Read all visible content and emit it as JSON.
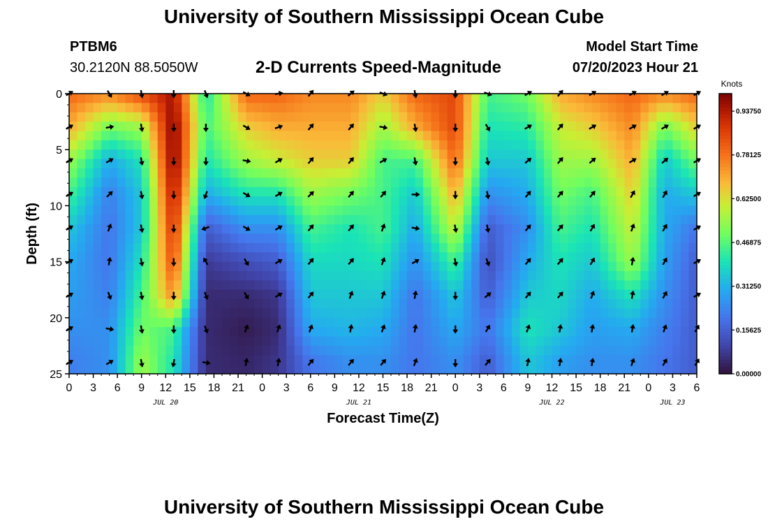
{
  "header": {
    "title": "University of Southern Mississippi Ocean Cube",
    "station_id": "PTBM6",
    "station_coords": "30.2120N  88.5050W",
    "subtitle": "2-D Currents Speed-Magnitude",
    "model_start_label": "Model Start Time",
    "model_start_value": "07/20/2023 Hour 21"
  },
  "footer": {
    "title": "University of Southern Mississippi Ocean Cube"
  },
  "chart_data": {
    "type": "heatmap",
    "title": "2-D Currents Speed-Magnitude",
    "xlabel": "Forecast Time(Z)",
    "ylabel": "Depth (ft)",
    "colorbar_label": "Knots",
    "colorbar_ticks": [
      "0.00000",
      "0.15625",
      "0.31250",
      "0.46875",
      "0.62500",
      "0.78125",
      "0.93750"
    ],
    "colorbar_range": [
      0.0,
      1.0
    ],
    "x_range_hours": [
      0,
      78
    ],
    "x_ticks": [
      "0",
      "3",
      "6",
      "9",
      "12",
      "15",
      "18",
      "21",
      "0",
      "3",
      "6",
      "9",
      "12",
      "15",
      "18",
      "21",
      "0",
      "3",
      "6",
      "9",
      "12",
      "15",
      "18",
      "21",
      "0",
      "3",
      "6"
    ],
    "date_labels": [
      "JUL 20",
      "JUL 21",
      "JUL 22",
      "JUL 23"
    ],
    "date_label_hours": [
      12,
      36,
      60,
      75
    ],
    "y_range_ft": [
      0,
      25
    ],
    "y_ticks": [
      0,
      5,
      10,
      15,
      20,
      25
    ],
    "arrow_times": [
      0,
      5,
      9,
      13,
      17,
      22,
      26,
      30,
      35,
      39,
      43,
      48,
      52,
      57,
      61,
      65,
      70,
      74,
      78
    ],
    "arrow_depths": [
      0,
      3,
      6,
      9,
      12,
      15,
      18,
      21,
      24
    ],
    "speed_knots_by_time": [
      {
        "hour": 0,
        "speeds": [
          0.8,
          0.7,
          0.55,
          0.45,
          0.35,
          0.3,
          0.28,
          0.25,
          0.22
        ]
      },
      {
        "hour": 5,
        "speeds": [
          0.75,
          0.5,
          0.3,
          0.22,
          0.2,
          0.2,
          0.22,
          0.25,
          0.25
        ]
      },
      {
        "hour": 9,
        "speeds": [
          0.85,
          0.55,
          0.4,
          0.35,
          0.35,
          0.4,
          0.45,
          0.5,
          0.55
        ]
      },
      {
        "hour": 13,
        "speeds": [
          0.95,
          1.0,
          1.0,
          0.95,
          0.9,
          0.85,
          0.75,
          0.45,
          0.4
        ]
      },
      {
        "hour": 17,
        "speeds": [
          0.4,
          0.45,
          0.4,
          0.3,
          0.15,
          0.08,
          0.05,
          0.05,
          0.05
        ]
      },
      {
        "hour": 22,
        "speeds": [
          0.8,
          0.65,
          0.55,
          0.4,
          0.25,
          0.12,
          0.05,
          0.02,
          0.04
        ]
      },
      {
        "hour": 26,
        "speeds": [
          0.8,
          0.7,
          0.6,
          0.4,
          0.25,
          0.15,
          0.07,
          0.05,
          0.07
        ]
      },
      {
        "hour": 30,
        "speeds": [
          0.75,
          0.7,
          0.65,
          0.55,
          0.45,
          0.38,
          0.35,
          0.3,
          0.2
        ]
      },
      {
        "hour": 35,
        "speeds": [
          0.75,
          0.7,
          0.65,
          0.5,
          0.4,
          0.38,
          0.35,
          0.32,
          0.25
        ]
      },
      {
        "hour": 39,
        "speeds": [
          0.65,
          0.55,
          0.45,
          0.45,
          0.45,
          0.4,
          0.35,
          0.3,
          0.25
        ]
      },
      {
        "hour": 43,
        "speeds": [
          0.8,
          0.7,
          0.45,
          0.35,
          0.3,
          0.25,
          0.2,
          0.2,
          0.2
        ]
      },
      {
        "hour": 48,
        "speeds": [
          0.85,
          0.85,
          0.8,
          0.7,
          0.6,
          0.45,
          0.35,
          0.3,
          0.25
        ]
      },
      {
        "hour": 52,
        "speeds": [
          0.45,
          0.4,
          0.35,
          0.25,
          0.15,
          0.12,
          0.15,
          0.2,
          0.15
        ]
      },
      {
        "hour": 57,
        "speeds": [
          0.5,
          0.42,
          0.35,
          0.3,
          0.25,
          0.3,
          0.35,
          0.4,
          0.35
        ]
      },
      {
        "hour": 61,
        "speeds": [
          0.7,
          0.6,
          0.55,
          0.5,
          0.45,
          0.4,
          0.38,
          0.35,
          0.28
        ]
      },
      {
        "hour": 65,
        "speeds": [
          0.75,
          0.65,
          0.55,
          0.45,
          0.4,
          0.35,
          0.3,
          0.28,
          0.25
        ]
      },
      {
        "hour": 70,
        "speeds": [
          0.8,
          0.75,
          0.7,
          0.65,
          0.6,
          0.55,
          0.4,
          0.3,
          0.25
        ]
      },
      {
        "hour": 74,
        "speeds": [
          0.75,
          0.5,
          0.35,
          0.3,
          0.3,
          0.28,
          0.25,
          0.22,
          0.2
        ]
      },
      {
        "hour": 78,
        "speeds": [
          0.8,
          0.65,
          0.5,
          0.35,
          0.2,
          0.15,
          0.15,
          0.15,
          0.15
        ]
      }
    ],
    "direction_deg_by_time": [
      {
        "hour": 0,
        "dirs": [
          60,
          60,
          60,
          60,
          60,
          60,
          60,
          60,
          60
        ]
      },
      {
        "hour": 5,
        "dirs": [
          150,
          80,
          60,
          45,
          20,
          10,
          160,
          100,
          60
        ]
      },
      {
        "hour": 9,
        "dirs": [
          170,
          170,
          170,
          170,
          170,
          170,
          170,
          170,
          170
        ]
      },
      {
        "hour": 13,
        "dirs": [
          180,
          180,
          180,
          180,
          180,
          180,
          180,
          180,
          190
        ]
      },
      {
        "hour": 17,
        "dirs": [
          160,
          180,
          180,
          200,
          250,
          330,
          160,
          160,
          100
        ]
      },
      {
        "hour": 22,
        "dirs": [
          120,
          120,
          100,
          120,
          120,
          150,
          150,
          20,
          10
        ]
      },
      {
        "hour": 26,
        "dirs": [
          80,
          70,
          60,
          60,
          60,
          60,
          60,
          20,
          10
        ]
      },
      {
        "hour": 30,
        "dirs": [
          40,
          40,
          40,
          45,
          40,
          40,
          40,
          20,
          40
        ]
      },
      {
        "hour": 35,
        "dirs": [
          50,
          40,
          40,
          40,
          40,
          40,
          20,
          10,
          40
        ]
      },
      {
        "hour": 39,
        "dirs": [
          110,
          100,
          60,
          40,
          20,
          20,
          20,
          20,
          40
        ]
      },
      {
        "hour": 43,
        "dirs": [
          170,
          170,
          170,
          90,
          100,
          60,
          10,
          10,
          20
        ]
      },
      {
        "hour": 48,
        "dirs": [
          180,
          180,
          180,
          180,
          170,
          170,
          180,
          180,
          180
        ]
      },
      {
        "hour": 52,
        "dirs": [
          110,
          150,
          170,
          170,
          170,
          160,
          50,
          30,
          40
        ]
      },
      {
        "hour": 57,
        "dirs": [
          60,
          60,
          50,
          40,
          40,
          40,
          40,
          20,
          10
        ]
      },
      {
        "hour": 61,
        "dirs": [
          40,
          40,
          40,
          40,
          40,
          40,
          40,
          10,
          10
        ]
      },
      {
        "hour": 65,
        "dirs": [
          60,
          60,
          50,
          40,
          30,
          30,
          20,
          10,
          10
        ]
      },
      {
        "hour": 70,
        "dirs": [
          60,
          60,
          60,
          30,
          20,
          10,
          10,
          10,
          20
        ]
      },
      {
        "hour": 74,
        "dirs": [
          60,
          60,
          50,
          30,
          30,
          30,
          30,
          20,
          30
        ]
      },
      {
        "hour": 78,
        "dirs": [
          60,
          60,
          60,
          60,
          60,
          60,
          60,
          30,
          30
        ]
      }
    ]
  }
}
